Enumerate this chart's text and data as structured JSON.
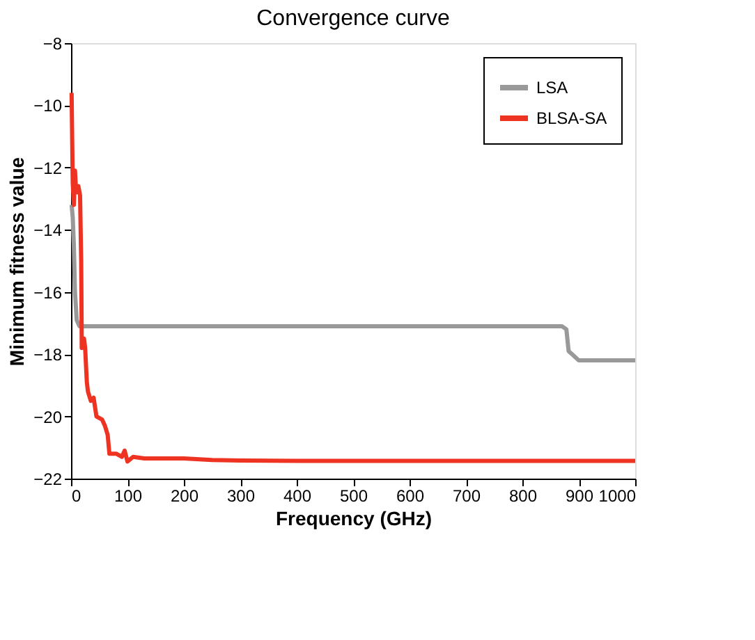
{
  "chart_data": {
    "type": "line",
    "title": "Convergence curve",
    "xlabel": "Frequency (GHz)",
    "ylabel": "Minimum fitness value",
    "xlim": [
      0,
      1000
    ],
    "ylim": [
      -22,
      -8
    ],
    "xticks": [
      0,
      100,
      200,
      300,
      400,
      500,
      600,
      700,
      800,
      900,
      1000
    ],
    "yticks": [
      -22,
      -20,
      -18,
      -16,
      -14,
      -12,
      -10,
      -8
    ],
    "grid": false,
    "legend": "top right",
    "line_style": "solid",
    "marker": "none",
    "series": [
      {
        "name": "LSA",
        "color": "#999999",
        "x": [
          1,
          3,
          5,
          7,
          10,
          15,
          300,
          600,
          870,
          878,
          882,
          888,
          900,
          1000
        ],
        "values": [
          -13.2,
          -13.6,
          -14.5,
          -16,
          -16.9,
          -17.1,
          -17.1,
          -17.1,
          -17.1,
          -17.2,
          -17.9,
          -18,
          -18.2,
          -18.2
        ]
      },
      {
        "name": "BLSA-SA",
        "color": "#ee3322",
        "x": [
          1,
          3,
          5,
          7,
          9,
          13,
          16,
          18,
          19,
          23,
          25,
          28,
          30,
          35,
          40,
          45,
          55,
          60,
          65,
          68,
          80,
          90,
          95,
          100,
          110,
          130,
          150,
          200,
          250,
          300,
          400,
          1000
        ],
        "values": [
          -9.6,
          -12.5,
          -13.2,
          -12.1,
          -12.8,
          -12.6,
          -12.9,
          -15,
          -17.8,
          -17.5,
          -17.8,
          -18.9,
          -19.2,
          -19.5,
          -19.4,
          -20,
          -20.1,
          -20.3,
          -20.6,
          -21.2,
          -21.2,
          -21.3,
          -21.1,
          -21.45,
          -21.3,
          -21.35,
          -21.35,
          -21.35,
          -21.4,
          -21.42,
          -21.43,
          -21.43
        ]
      }
    ]
  }
}
